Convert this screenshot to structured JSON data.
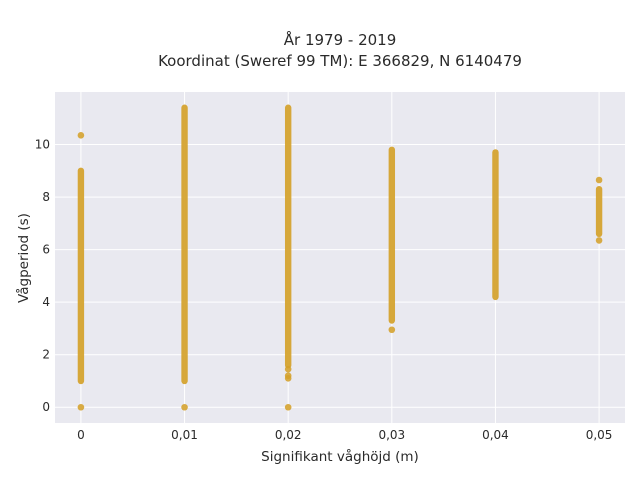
{
  "chart_data": {
    "type": "scatter",
    "title_lines": [
      "År 1979 - 2019",
      "Koordinat (Sweref 99 TM): E 366829, N 6140479"
    ],
    "xlabel": "Signifikant våghöjd (m)",
    "ylabel": "Vågperiod (s)",
    "x_ticks": [
      0,
      0.01,
      0.02,
      0.03,
      0.04,
      0.05
    ],
    "x_tick_labels": [
      "0",
      "0,01",
      "0,02",
      "0,03",
      "0,04",
      "0,05"
    ],
    "y_ticks": [
      0,
      2,
      4,
      6,
      8,
      10
    ],
    "y_tick_labels": [
      "0",
      "2",
      "4",
      "6",
      "8",
      "10"
    ],
    "xlim": [
      -0.0025,
      0.0525
    ],
    "ylim": [
      -0.6,
      12
    ],
    "grid": true,
    "marker_color": "#D4A12A",
    "columns": [
      {
        "x": 0,
        "y_range": [
          1.0,
          9.0
        ],
        "extra_y": [
          0,
          10.35
        ]
      },
      {
        "x": 0.01,
        "y_range": [
          1.0,
          11.4
        ],
        "extra_y": [
          0
        ]
      },
      {
        "x": 0.02,
        "y_range": [
          1.6,
          11.4
        ],
        "extra_y": [
          0,
          1.1,
          1.2,
          1.45
        ]
      },
      {
        "x": 0.03,
        "y_range": [
          3.3,
          9.8
        ],
        "extra_y": [
          2.95
        ]
      },
      {
        "x": 0.04,
        "y_range": [
          4.2,
          9.7
        ],
        "extra_y": []
      },
      {
        "x": 0.05,
        "y_range": [
          6.6,
          8.3
        ],
        "extra_y": [
          6.35,
          8.65
        ]
      }
    ]
  }
}
